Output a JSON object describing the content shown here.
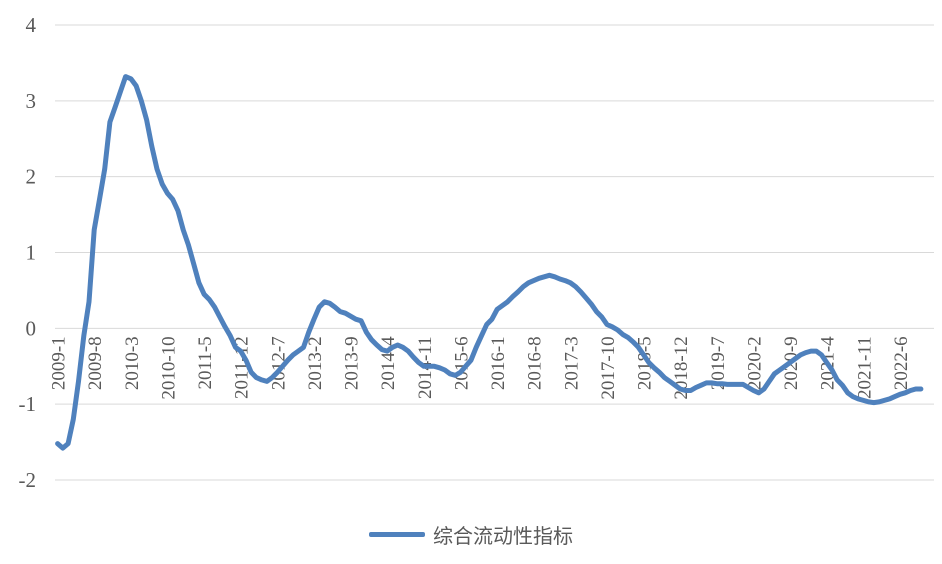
{
  "chart_data": {
    "type": "line",
    "title": "",
    "xlabel": "",
    "ylabel": "",
    "ylim": [
      -2,
      4
    ],
    "yticks": [
      "4",
      "3",
      "2",
      "1",
      "0",
      "-1",
      "-2"
    ],
    "ytick_values": [
      4,
      3,
      2,
      1,
      0,
      -1,
      -2
    ],
    "grid": true,
    "legend_position": "bottom",
    "x_tick_labels": [
      "2009-1",
      "2009-8",
      "2010-3",
      "2010-10",
      "2011-5",
      "2011-12",
      "2012-7",
      "2013-2",
      "2013-9",
      "2014-4",
      "2014-11",
      "2015-6",
      "2016-1",
      "2016-8",
      "2017-3",
      "2017-10",
      "2018-5",
      "2018-12",
      "2019-7",
      "2020-2",
      "2020-9",
      "2021-4",
      "2021-11",
      "2022-6"
    ],
    "x_start": "2009-1",
    "x_end": "2022-12",
    "series": [
      {
        "name": "综合流动性指标",
        "color": "#4f81bd",
        "points": [
          [
            "2009-1",
            -1.52
          ],
          [
            "2009-2",
            -1.58
          ],
          [
            "2009-3",
            -1.52
          ],
          [
            "2009-4",
            -1.2
          ],
          [
            "2009-5",
            -0.7
          ],
          [
            "2009-6",
            -0.1
          ],
          [
            "2009-7",
            0.35
          ],
          [
            "2009-8",
            1.3
          ],
          [
            "2009-9",
            1.7
          ],
          [
            "2009-10",
            2.1
          ],
          [
            "2009-11",
            2.72
          ],
          [
            "2009-12",
            2.92
          ],
          [
            "2010-1",
            3.12
          ],
          [
            "2010-2",
            3.32
          ],
          [
            "2010-3",
            3.29
          ],
          [
            "2010-4",
            3.2
          ],
          [
            "2010-5",
            3.0
          ],
          [
            "2010-6",
            2.75
          ],
          [
            "2010-7",
            2.4
          ],
          [
            "2010-8",
            2.1
          ],
          [
            "2010-9",
            1.9
          ],
          [
            "2010-10",
            1.78
          ],
          [
            "2010-11",
            1.7
          ],
          [
            "2010-12",
            1.55
          ],
          [
            "2011-1",
            1.3
          ],
          [
            "2011-2",
            1.1
          ],
          [
            "2011-3",
            0.85
          ],
          [
            "2011-4",
            0.6
          ],
          [
            "2011-5",
            0.45
          ],
          [
            "2011-6",
            0.38
          ],
          [
            "2011-7",
            0.28
          ],
          [
            "2011-8",
            0.15
          ],
          [
            "2011-9",
            0.02
          ],
          [
            "2011-10",
            -0.1
          ],
          [
            "2011-11",
            -0.25
          ],
          [
            "2011-12",
            -0.3
          ],
          [
            "2012-1",
            -0.42
          ],
          [
            "2012-2",
            -0.58
          ],
          [
            "2012-3",
            -0.65
          ],
          [
            "2012-4",
            -0.68
          ],
          [
            "2012-5",
            -0.7
          ],
          [
            "2012-6",
            -0.65
          ],
          [
            "2012-7",
            -0.58
          ],
          [
            "2012-8",
            -0.5
          ],
          [
            "2012-9",
            -0.42
          ],
          [
            "2012-10",
            -0.35
          ],
          [
            "2012-11",
            -0.3
          ],
          [
            "2012-12",
            -0.25
          ],
          [
            "2013-1",
            -0.05
          ],
          [
            "2013-2",
            0.12
          ],
          [
            "2013-3",
            0.28
          ],
          [
            "2013-4",
            0.35
          ],
          [
            "2013-5",
            0.33
          ],
          [
            "2013-6",
            0.28
          ],
          [
            "2013-7",
            0.22
          ],
          [
            "2013-8",
            0.2
          ],
          [
            "2013-9",
            0.16
          ],
          [
            "2013-10",
            0.12
          ],
          [
            "2013-11",
            0.1
          ],
          [
            "2013-12",
            -0.05
          ],
          [
            "2014-1",
            -0.15
          ],
          [
            "2014-2",
            -0.22
          ],
          [
            "2014-3",
            -0.28
          ],
          [
            "2014-4",
            -0.3
          ],
          [
            "2014-5",
            -0.25
          ],
          [
            "2014-6",
            -0.22
          ],
          [
            "2014-7",
            -0.25
          ],
          [
            "2014-8",
            -0.3
          ],
          [
            "2014-9",
            -0.38
          ],
          [
            "2014-10",
            -0.45
          ],
          [
            "2014-11",
            -0.5
          ],
          [
            "2014-12",
            -0.5
          ],
          [
            "2015-1",
            -0.5
          ],
          [
            "2015-2",
            -0.52
          ],
          [
            "2015-3",
            -0.55
          ],
          [
            "2015-4",
            -0.6
          ],
          [
            "2015-5",
            -0.62
          ],
          [
            "2015-6",
            -0.58
          ],
          [
            "2015-7",
            -0.5
          ],
          [
            "2015-8",
            -0.42
          ],
          [
            "2015-9",
            -0.25
          ],
          [
            "2015-10",
            -0.1
          ],
          [
            "2015-11",
            0.05
          ],
          [
            "2015-12",
            0.12
          ],
          [
            "2016-1",
            0.25
          ],
          [
            "2016-2",
            0.3
          ],
          [
            "2016-3",
            0.35
          ],
          [
            "2016-4",
            0.42
          ],
          [
            "2016-5",
            0.48
          ],
          [
            "2016-6",
            0.55
          ],
          [
            "2016-7",
            0.6
          ],
          [
            "2016-8",
            0.63
          ],
          [
            "2016-9",
            0.66
          ],
          [
            "2016-10",
            0.68
          ],
          [
            "2016-11",
            0.7
          ],
          [
            "2016-12",
            0.68
          ],
          [
            "2017-1",
            0.65
          ],
          [
            "2017-2",
            0.63
          ],
          [
            "2017-3",
            0.6
          ],
          [
            "2017-4",
            0.55
          ],
          [
            "2017-5",
            0.48
          ],
          [
            "2017-6",
            0.4
          ],
          [
            "2017-7",
            0.32
          ],
          [
            "2017-8",
            0.22
          ],
          [
            "2017-9",
            0.15
          ],
          [
            "2017-10",
            0.05
          ],
          [
            "2017-11",
            0.02
          ],
          [
            "2017-12",
            -0.02
          ],
          [
            "2018-1",
            -0.08
          ],
          [
            "2018-2",
            -0.12
          ],
          [
            "2018-3",
            -0.18
          ],
          [
            "2018-4",
            -0.25
          ],
          [
            "2018-5",
            -0.35
          ],
          [
            "2018-6",
            -0.45
          ],
          [
            "2018-7",
            -0.52
          ],
          [
            "2018-8",
            -0.58
          ],
          [
            "2018-9",
            -0.65
          ],
          [
            "2018-10",
            -0.7
          ],
          [
            "2018-11",
            -0.75
          ],
          [
            "2018-12",
            -0.8
          ],
          [
            "2019-1",
            -0.82
          ],
          [
            "2019-2",
            -0.82
          ],
          [
            "2019-3",
            -0.78
          ],
          [
            "2019-4",
            -0.75
          ],
          [
            "2019-5",
            -0.72
          ],
          [
            "2019-6",
            -0.72
          ],
          [
            "2019-7",
            -0.73
          ],
          [
            "2019-8",
            -0.73
          ],
          [
            "2019-9",
            -0.74
          ],
          [
            "2019-10",
            -0.74
          ],
          [
            "2019-11",
            -0.74
          ],
          [
            "2019-12",
            -0.74
          ],
          [
            "2020-1",
            -0.78
          ],
          [
            "2020-2",
            -0.82
          ],
          [
            "2020-3",
            -0.85
          ],
          [
            "2020-4",
            -0.8
          ],
          [
            "2020-5",
            -0.7
          ],
          [
            "2020-6",
            -0.6
          ],
          [
            "2020-7",
            -0.55
          ],
          [
            "2020-8",
            -0.5
          ],
          [
            "2020-9",
            -0.45
          ],
          [
            "2020-10",
            -0.4
          ],
          [
            "2020-11",
            -0.35
          ],
          [
            "2020-12",
            -0.32
          ],
          [
            "2021-1",
            -0.3
          ],
          [
            "2021-2",
            -0.3
          ],
          [
            "2021-3",
            -0.35
          ],
          [
            "2021-4",
            -0.45
          ],
          [
            "2021-5",
            -0.55
          ],
          [
            "2021-6",
            -0.68
          ],
          [
            "2021-7",
            -0.75
          ],
          [
            "2021-8",
            -0.85
          ],
          [
            "2021-9",
            -0.9
          ],
          [
            "2021-10",
            -0.93
          ],
          [
            "2021-11",
            -0.95
          ],
          [
            "2021-12",
            -0.97
          ],
          [
            "2022-1",
            -0.98
          ],
          [
            "2022-2",
            -0.97
          ],
          [
            "2022-3",
            -0.95
          ],
          [
            "2022-4",
            -0.93
          ],
          [
            "2022-5",
            -0.9
          ],
          [
            "2022-6",
            -0.87
          ],
          [
            "2022-7",
            -0.85
          ],
          [
            "2022-8",
            -0.82
          ],
          [
            "2022-9",
            -0.8
          ],
          [
            "2022-10",
            -0.8
          ]
        ]
      }
    ]
  },
  "legend": {
    "label": "综合流动性指标"
  }
}
